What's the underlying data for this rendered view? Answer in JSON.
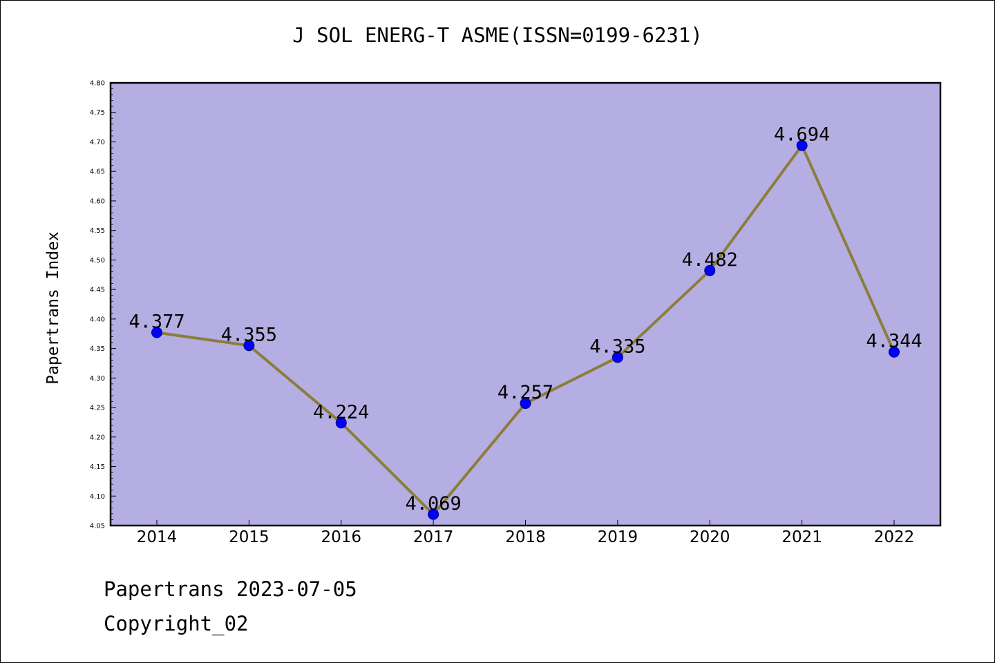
{
  "chart_data": {
    "type": "line",
    "title": "J SOL ENERG-T ASME(ISSN=0199-6231)",
    "ylabel": "Papertrans Index",
    "xlabel": "",
    "categories": [
      "2014",
      "2015",
      "2016",
      "2017",
      "2018",
      "2019",
      "2020",
      "2021",
      "2022"
    ],
    "series": [
      {
        "values": [
          4.377,
          4.355,
          4.224,
          4.069,
          4.257,
          4.335,
          4.482,
          4.694,
          4.344
        ],
        "labels": [
          "4.377",
          "4.355",
          "4.224",
          "4.069",
          "4.257",
          "4.335",
          "4.482",
          "4.694",
          "4.344"
        ],
        "line_color": "#8b7d3a",
        "marker_color": "#0000ff"
      }
    ],
    "ylim": [
      4.05,
      4.8
    ],
    "yticks": [
      "4.05",
      "4.10",
      "4.15",
      "4.20",
      "4.25",
      "4.30",
      "4.35",
      "4.40",
      "4.45",
      "4.50",
      "4.55",
      "4.60",
      "4.65",
      "4.70",
      "4.75",
      "4.80"
    ],
    "plot_background": "#b4aee2",
    "grid": false
  },
  "footer": {
    "line1": "Papertrans 2023-07-05",
    "line2": "Copyright_02"
  }
}
